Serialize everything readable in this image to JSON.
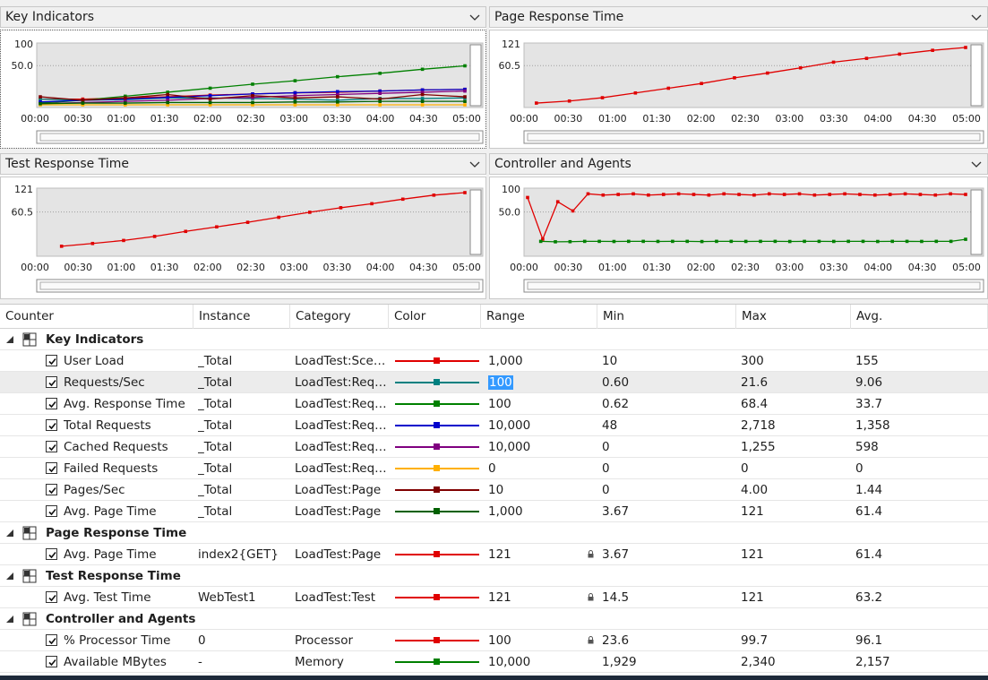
{
  "panels": {
    "key_indicators": {
      "title": "Key Indicators"
    },
    "page_response": {
      "title": "Page Response Time"
    },
    "test_response": {
      "title": "Test Response Time"
    },
    "controller_agents": {
      "title": "Controller and Agents"
    }
  },
  "x_ticks": [
    "00:00",
    "00:30",
    "01:00",
    "01:30",
    "02:00",
    "02:30",
    "03:00",
    "03:30",
    "04:00",
    "04:30",
    "05:00"
  ],
  "chart_data": [
    {
      "type": "line",
      "title": "Key Indicators",
      "y_ticks": [
        "100",
        "50.0"
      ],
      "ylim": [
        0,
        100
      ],
      "x": [
        "00:00",
        "00:30",
        "01:00",
        "01:30",
        "02:00",
        "02:30",
        "03:00",
        "03:30",
        "04:00",
        "04:30",
        "05:00"
      ],
      "series": [
        {
          "name": "User Load",
          "color": "#e00000",
          "values": [
            10,
            10,
            12,
            14,
            17,
            19,
            21,
            22,
            24,
            26,
            27
          ]
        },
        {
          "name": "Requests/Sec",
          "color": "#008080",
          "values": [
            10,
            8,
            9,
            12,
            12,
            11,
            10,
            8,
            11,
            11,
            12
          ]
        },
        {
          "name": "Avg. Response Time",
          "color": "#008000",
          "values": [
            3,
            8,
            15,
            22,
            29,
            36,
            42,
            49,
            55,
            62,
            68
          ]
        },
        {
          "name": "Total Requests",
          "color": "#0000cc",
          "values": [
            5,
            8,
            10,
            13,
            16,
            19,
            21,
            23,
            24,
            26,
            27
          ]
        },
        {
          "name": "Cached Requests",
          "color": "#800080",
          "values": [
            2,
            4,
            6,
            8,
            11,
            13,
            16,
            18,
            20,
            22,
            24
          ]
        },
        {
          "name": "Failed Requests",
          "color": "#ffb000",
          "values": [
            0,
            0,
            0,
            0,
            0,
            0,
            0,
            0,
            0,
            0,
            0
          ]
        },
        {
          "name": "Pages/Sec",
          "color": "#800000",
          "values": [
            14,
            8,
            12,
            18,
            10,
            16,
            12,
            14,
            10,
            18,
            14
          ]
        },
        {
          "name": "Avg. Page Time",
          "color": "#006000",
          "values": [
            2,
            3,
            3,
            4,
            4,
            4,
            5,
            5,
            6,
            6,
            6
          ]
        }
      ]
    },
    {
      "type": "line",
      "title": "Page Response Time",
      "y_ticks": [
        "121",
        "60.5"
      ],
      "ylim": [
        0,
        121
      ],
      "series": [
        {
          "name": "Avg. Page Time",
          "color": "#e00000",
          "x_start": 0.02,
          "values": [
            3.67,
            8,
            15,
            25,
            35,
            45,
            57,
            67,
            78,
            90,
            98,
            107,
            115,
            121
          ]
        }
      ]
    },
    {
      "type": "line",
      "title": "Test Response Time",
      "y_ticks": [
        "121",
        "60.5"
      ],
      "ylim": [
        0,
        121
      ],
      "series": [
        {
          "name": "Avg. Test Time",
          "color": "#e00000",
          "x_start": 0.05,
          "values": [
            14.5,
            20,
            26,
            34,
            44,
            53,
            62,
            72,
            82,
            91,
            99,
            108,
            116,
            121
          ]
        }
      ]
    },
    {
      "type": "line",
      "title": "Controller and Agents",
      "y_ticks": [
        "100",
        "50.0"
      ],
      "ylim": [
        0,
        100
      ],
      "series": [
        {
          "name": "% Processor Time",
          "color": "#e00000",
          "x_start": 0.0,
          "values": [
            92,
            23.6,
            85,
            70,
            98,
            96,
            97,
            98,
            96,
            97,
            98,
            97,
            96,
            98,
            97,
            96,
            98,
            97,
            98,
            96,
            97,
            98,
            97,
            96,
            97,
            98,
            97,
            96,
            98,
            97
          ]
        },
        {
          "name": "Available MBytes",
          "color": "#008000",
          "x_start": 0.03,
          "values": [
            20,
            19.3,
            19.5,
            20,
            20,
            19.8,
            20,
            20,
            19.9,
            20,
            20,
            19.7,
            20,
            20,
            19.9,
            20,
            20,
            19.8,
            20,
            20,
            19.9,
            20,
            20,
            19.8,
            20,
            20,
            19.9,
            20,
            20,
            23.4
          ]
        }
      ]
    }
  ],
  "grid": {
    "columns": [
      "Counter",
      "Instance",
      "Category",
      "Color",
      "Range",
      "Min",
      "Max",
      "Avg."
    ],
    "groups": [
      {
        "label": "Key Indicators",
        "rows": [
          {
            "counter": "User Load",
            "instance": "_Total",
            "category": "LoadTest:Sce…",
            "color": "#e00000",
            "range": "1,000",
            "min": "10",
            "max": "300",
            "avg": "155"
          },
          {
            "counter": "Requests/Sec",
            "instance": "_Total",
            "category": "LoadTest:Req…",
            "color": "#008080",
            "range": "100",
            "min": "0.60",
            "max": "21.6",
            "avg": "9.06",
            "selected": true
          },
          {
            "counter": "Avg. Response Time",
            "instance": "_Total",
            "category": "LoadTest:Req…",
            "color": "#008000",
            "range": "100",
            "min": "0.62",
            "max": "68.4",
            "avg": "33.7"
          },
          {
            "counter": "Total Requests",
            "instance": "_Total",
            "category": "LoadTest:Req…",
            "color": "#0000cc",
            "range": "10,000",
            "min": "48",
            "max": "2,718",
            "avg": "1,358"
          },
          {
            "counter": "Cached Requests",
            "instance": "_Total",
            "category": "LoadTest:Req…",
            "color": "#800080",
            "range": "10,000",
            "min": "0",
            "max": "1,255",
            "avg": "598"
          },
          {
            "counter": "Failed Requests",
            "instance": "_Total",
            "category": "LoadTest:Req…",
            "color": "#ffb000",
            "range": "0",
            "min": "0",
            "max": "0",
            "avg": "0"
          },
          {
            "counter": "Pages/Sec",
            "instance": "_Total",
            "category": "LoadTest:Page",
            "color": "#800000",
            "range": "10",
            "min": "0",
            "max": "4.00",
            "avg": "1.44"
          },
          {
            "counter": "Avg. Page Time",
            "instance": "_Total",
            "category": "LoadTest:Page",
            "color": "#006000",
            "range": "1,000",
            "min": "3.67",
            "max": "121",
            "avg": "61.4"
          }
        ]
      },
      {
        "label": "Page Response Time",
        "rows": [
          {
            "counter": "Avg. Page Time",
            "instance": "index2{GET}",
            "category": "LoadTest:Page",
            "color": "#e00000",
            "range": "121",
            "min": "3.67",
            "max": "121",
            "avg": "61.4",
            "locked": true
          }
        ]
      },
      {
        "label": "Test Response Time",
        "rows": [
          {
            "counter": "Avg. Test Time",
            "instance": "WebTest1",
            "category": "LoadTest:Test",
            "color": "#e00000",
            "range": "121",
            "min": "14.5",
            "max": "121",
            "avg": "63.2",
            "locked": true
          }
        ]
      },
      {
        "label": "Controller and Agents",
        "rows": [
          {
            "counter": "% Processor Time",
            "instance": "0",
            "category": "Processor",
            "color": "#e00000",
            "range": "100",
            "min": "23.6",
            "max": "99.7",
            "avg": "96.1",
            "locked": true
          },
          {
            "counter": "Available MBytes",
            "instance": "-",
            "category": "Memory",
            "color": "#008000",
            "range": "10,000",
            "min": "1,929",
            "max": "2,340",
            "avg": "2,157"
          }
        ]
      }
    ]
  }
}
